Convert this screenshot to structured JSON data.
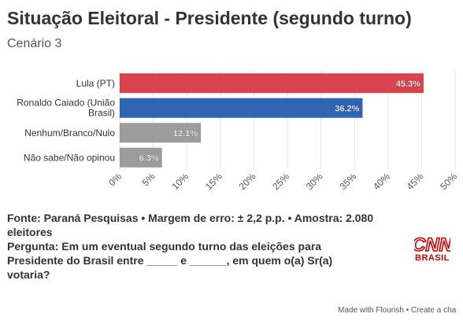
{
  "header": {
    "title": "Situação Eleitoral - Presidente (segundo turno)",
    "subtitle": "Cenário 3"
  },
  "chart_data": {
    "type": "bar",
    "orientation": "horizontal",
    "categories": [
      "Lula (PT)",
      "Ronaldo Caiado (União Brasil)",
      "Nenhum/Branco/Nulo",
      "Não sabe/Não opinou"
    ],
    "values": [
      45.3,
      36.2,
      12.1,
      6.3
    ],
    "value_labels": [
      "45.3%",
      "36.2%",
      "12.1%",
      "6.3%"
    ],
    "colors": [
      "#d9434e",
      "#2f64b3",
      "#9c9c9c",
      "#9c9c9c"
    ],
    "xlim": [
      0,
      50
    ],
    "ticks": [
      0,
      5,
      10,
      15,
      20,
      25,
      30,
      35,
      40,
      45,
      50
    ],
    "tick_labels": [
      "0%",
      "5%",
      "10%",
      "15%",
      "20%",
      "25%",
      "30%",
      "35%",
      "40%",
      "45%",
      "50%"
    ],
    "grid": true
  },
  "footer": {
    "source": "Fonte: Paraná Pesquisas • Margem de erro: ± 2,2 p.p. • Amostra: 2.080 eleitores",
    "question": "Pergunta: Em um eventual segundo turno das eleições para Presidente do Brasil entre _____ e ______, em quem o(a) Sr(a) votaria?"
  },
  "logo": {
    "text": "CNN",
    "sub": "BRASIL",
    "color": "#cc0000"
  },
  "credit": "Made with Flourish • Create a cha"
}
